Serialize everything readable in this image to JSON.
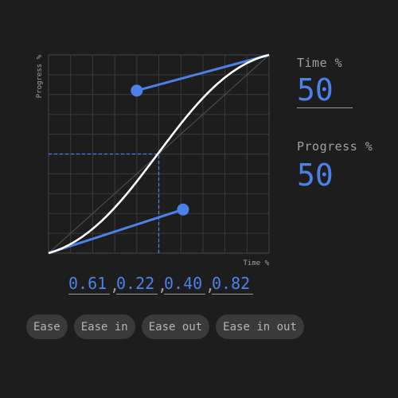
{
  "editor": {
    "x_axis_label": "Time %",
    "y_axis_label": "Progress %",
    "bezier": [
      0.61,
      0.22,
      0.4,
      0.82
    ],
    "current": {
      "time": 50,
      "progress": 50
    },
    "colors": {
      "background": "#1d1d1d",
      "grid": "#3a3a3a",
      "curve": "#ffffff",
      "handle": "#4a82ea",
      "guide": "#4a82ea"
    }
  },
  "readout": {
    "time_label": "Time %",
    "time_value": "50",
    "progress_label": "Progress %",
    "progress_value": "50"
  },
  "bezier_inputs": {
    "x1": "0.61",
    "y1": "0.22",
    "x2": "0.40",
    "y2": "0.82",
    "separator": ","
  },
  "presets": [
    {
      "label": "Ease"
    },
    {
      "label": "Ease in"
    },
    {
      "label": "Ease out"
    },
    {
      "label": "Ease in out"
    }
  ]
}
